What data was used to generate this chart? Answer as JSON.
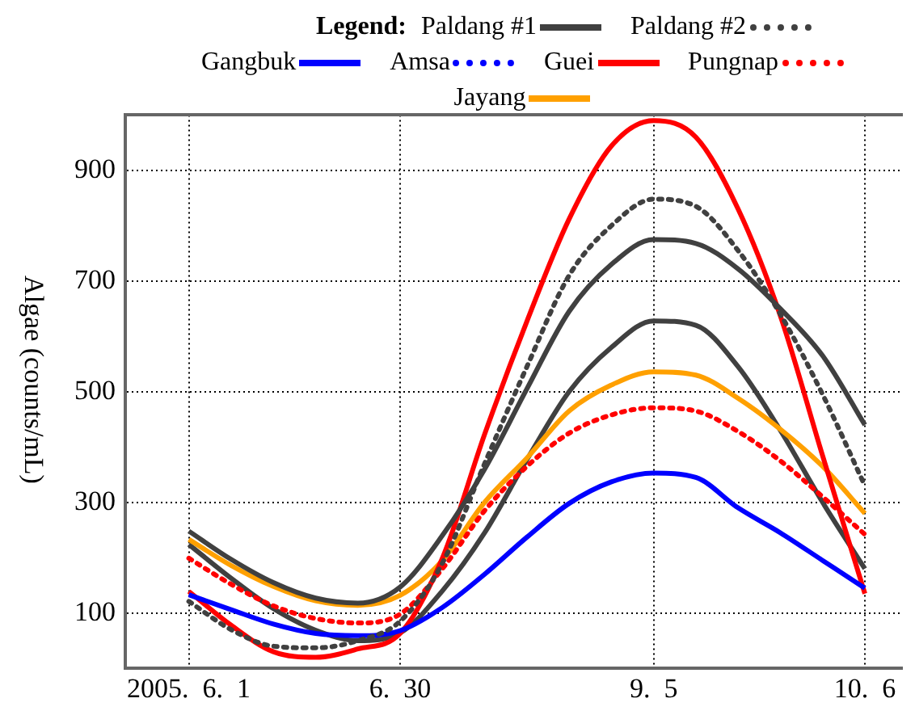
{
  "chart_data": {
    "type": "line",
    "ylabel": "Algae  (counts/mL)",
    "legend_title": "Legend:",
    "legend": "top",
    "grid": true,
    "marker": "none",
    "categories": [
      "2005.  6.  1",
      null,
      null,
      null,
      null,
      "6.  30",
      null,
      null,
      null,
      null,
      null,
      "9.  5",
      null,
      null,
      null,
      null,
      "10.  6"
    ],
    "ylim": [
      0,
      1000
    ],
    "yticks": [
      100,
      300,
      500,
      700,
      900
    ],
    "series": [
      {
        "name": "Paldang  #1",
        "color": "#404040",
        "line_style": "solid",
        "values": [
          248,
          197,
          155,
          127,
          118,
          147,
          240,
          360,
          505,
          645,
          730,
          775,
          768,
          722,
          650,
          565,
          440
        ]
      },
      {
        "name": "Paldang  #2",
        "color": "#404040",
        "line_style": "dotted",
        "values": [
          121,
          70,
          40,
          37,
          50,
          85,
          190,
          370,
          545,
          710,
          800,
          848,
          835,
          755,
          640,
          495,
          330
        ]
      },
      {
        "name": "Gangbuk",
        "color": "#0000ff",
        "line_style": "solid",
        "values": [
          133,
          106,
          80,
          63,
          59,
          68,
          110,
          170,
          237,
          298,
          337,
          353,
          345,
          290,
          245,
          195,
          145
        ]
      },
      {
        "name": "Amsa",
        "color": "#0000ff",
        "line_style": "dotted",
        "values": [
          null,
          null,
          null,
          null,
          null,
          null,
          null,
          null,
          null,
          null,
          null,
          null,
          null,
          null,
          null,
          null,
          null
        ]
      },
      {
        "name": "Guei",
        "color": "#ff0000",
        "line_style": "solid",
        "values": [
          139,
          78,
          30,
          20,
          35,
          63,
          199,
          423,
          627,
          812,
          944,
          990,
          960,
          830,
          637,
          384,
          135
        ]
      },
      {
        "name": "Pungnap",
        "color": "#ff0000",
        "line_style": "dotted",
        "values": [
          199,
          152,
          113,
          90,
          82,
          98,
          180,
          285,
          365,
          425,
          458,
          471,
          465,
          428,
          375,
          310,
          242
        ]
      },
      {
        "name": "Jayang",
        "color": "#ffa000",
        "line_style": "solid",
        "values": [
          233,
          186,
          148,
          122,
          114,
          132,
          195,
          300,
          380,
          465,
          512,
          536,
          530,
          488,
          432,
          365,
          280
        ]
      },
      {
        "color": "#404040",
        "line_style": "solid",
        "values": [
          224,
          163,
          108,
          69,
          50,
          64,
          140,
          245,
          377,
          500,
          580,
          628,
          620,
          545,
          430,
          300,
          180
        ]
      }
    ]
  }
}
